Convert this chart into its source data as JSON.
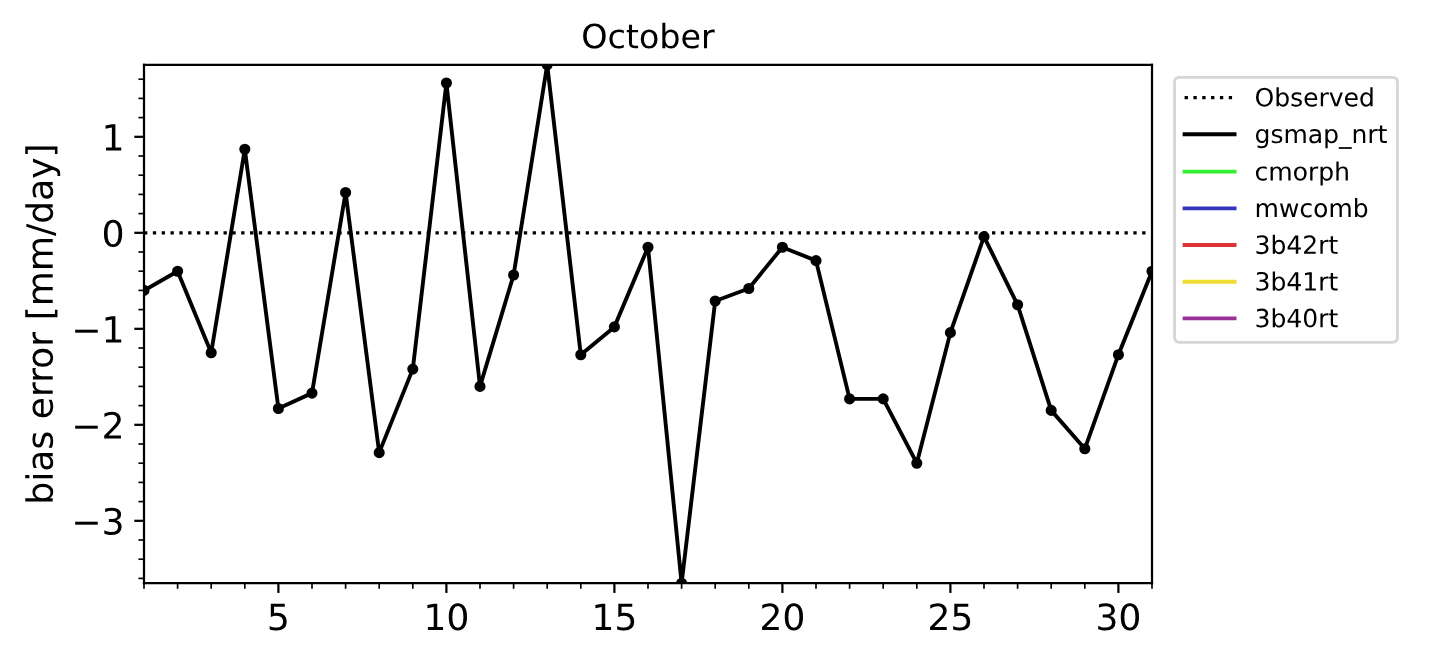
{
  "chart_data": {
    "type": "line",
    "title": "October",
    "ylabel": "bias error [mm/day]",
    "x": [
      1,
      2,
      3,
      4,
      5,
      6,
      7,
      8,
      9,
      10,
      11,
      12,
      13,
      14,
      15,
      16,
      17,
      18,
      19,
      20,
      21,
      22,
      23,
      24,
      25,
      26,
      27,
      28,
      29,
      30,
      31
    ],
    "series": [
      {
        "name": "gsmap_nrt",
        "color": "#000000",
        "values": [
          -0.6,
          -0.4,
          -1.25,
          0.87,
          -1.83,
          -1.67,
          0.42,
          -2.29,
          -1.42,
          1.56,
          -1.6,
          -0.44,
          1.75,
          -1.27,
          -0.98,
          -0.15,
          -3.65,
          -0.71,
          -0.58,
          -0.15,
          -0.29,
          -1.73,
          -1.73,
          -2.4,
          -1.04,
          -0.04,
          -0.75,
          -1.85,
          -2.25,
          -1.27,
          -0.4
        ]
      },
      {
        "name": "cmorph",
        "color": "#33ee33",
        "values": [
          null,
          null,
          null,
          null,
          null,
          null,
          null,
          null,
          null,
          null,
          null,
          null,
          null,
          null,
          null,
          null,
          null,
          null,
          null,
          null,
          null,
          null,
          null,
          null,
          null,
          null,
          null,
          null,
          null,
          null,
          null
        ]
      },
      {
        "name": "mwcomb",
        "color": "#3333bb",
        "values": [
          null,
          null,
          null,
          null,
          null,
          null,
          null,
          null,
          null,
          null,
          null,
          null,
          null,
          null,
          null,
          null,
          null,
          null,
          null,
          null,
          null,
          null,
          null,
          null,
          null,
          null,
          null,
          null,
          null,
          null,
          null
        ]
      },
      {
        "name": "3b42rt",
        "color": "#dd3333",
        "values": [
          null,
          null,
          null,
          null,
          null,
          null,
          null,
          null,
          null,
          null,
          null,
          null,
          null,
          null,
          null,
          null,
          null,
          null,
          null,
          null,
          null,
          null,
          null,
          null,
          null,
          null,
          null,
          null,
          null,
          null,
          null
        ]
      },
      {
        "name": "3b41rt",
        "color": "#eedd33",
        "values": [
          null,
          null,
          null,
          null,
          null,
          null,
          null,
          null,
          null,
          null,
          null,
          null,
          null,
          null,
          null,
          null,
          null,
          null,
          null,
          null,
          null,
          null,
          null,
          null,
          null,
          null,
          null,
          null,
          null,
          null,
          null
        ]
      },
      {
        "name": "3b40rt",
        "color": "#993399",
        "values": [
          null,
          null,
          null,
          null,
          null,
          null,
          null,
          null,
          null,
          null,
          null,
          null,
          null,
          null,
          null,
          null,
          null,
          null,
          null,
          null,
          null,
          null,
          null,
          null,
          null,
          null,
          null,
          null,
          null,
          null,
          null
        ]
      }
    ],
    "ref_lines": [
      {
        "axis": "y",
        "value": 0,
        "label": "Observed",
        "color": "#000000",
        "line_style": "dotted"
      }
    ],
    "xlim": [
      1,
      31
    ],
    "xticks": [
      5,
      10,
      15,
      20,
      25,
      30
    ],
    "ylim": [
      -3.65,
      1.75
    ],
    "yticks": [
      -3,
      -2,
      -1,
      0,
      1
    ],
    "marker": "circle",
    "line_style": "solid",
    "grid": false,
    "legend": "right"
  }
}
